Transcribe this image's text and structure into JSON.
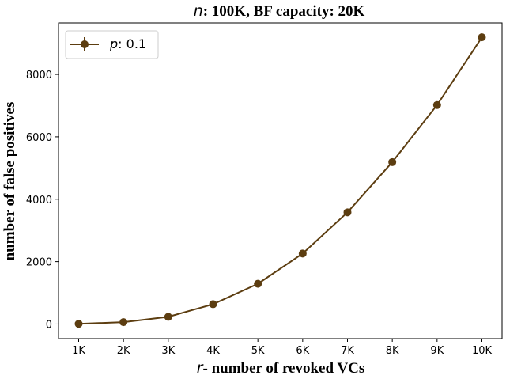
{
  "chart_data": {
    "type": "line",
    "title_var": "n",
    "title_rest": ": 100K, BF capacity: 20K",
    "xlabel_var": "r",
    "xlabel_rest": "- number of revoked VCs",
    "ylabel": "number of false positives",
    "categories": [
      "1K",
      "2K",
      "3K",
      "4K",
      "5K",
      "6K",
      "7K",
      "8K",
      "9K",
      "10K"
    ],
    "series": [
      {
        "name_var": "p",
        "name_rest": ": 0.1",
        "color": "#5c3d10",
        "values": [
          5,
          60,
          230,
          635,
          1290,
          2260,
          3580,
          5190,
          7020,
          9190
        ]
      }
    ],
    "yticks": [
      0,
      2000,
      4000,
      6000,
      8000
    ],
    "ylim": [
      -470,
      9650
    ],
    "grid": false,
    "legend_position": "top-left"
  }
}
